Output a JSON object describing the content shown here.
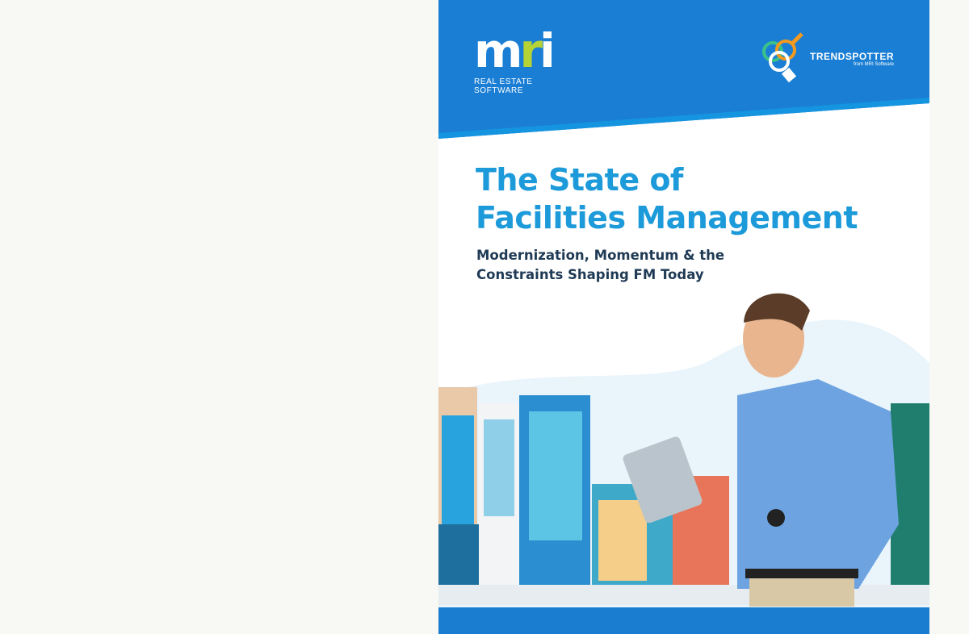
{
  "cover": {
    "logo_mri": {
      "letters_m": "m",
      "letters_r": "r",
      "letters_i": "i",
      "tagline": "REAL ESTATE SOFTWARE"
    },
    "logo_trendspotter": {
      "name": "TRENDSPOTTER",
      "sub": "from MRI Software"
    },
    "title_line1": "The State of",
    "title_line2": "Facilities Management",
    "subtitle_line1": "Modernization, Momentum & the",
    "subtitle_line2": "Constraints Shaping FM Today",
    "colors": {
      "brand_blue": "#1a7fd4",
      "title_blue": "#1c9ad9",
      "subtitle_navy": "#1f3a55",
      "mri_green": "#b5d334"
    }
  }
}
